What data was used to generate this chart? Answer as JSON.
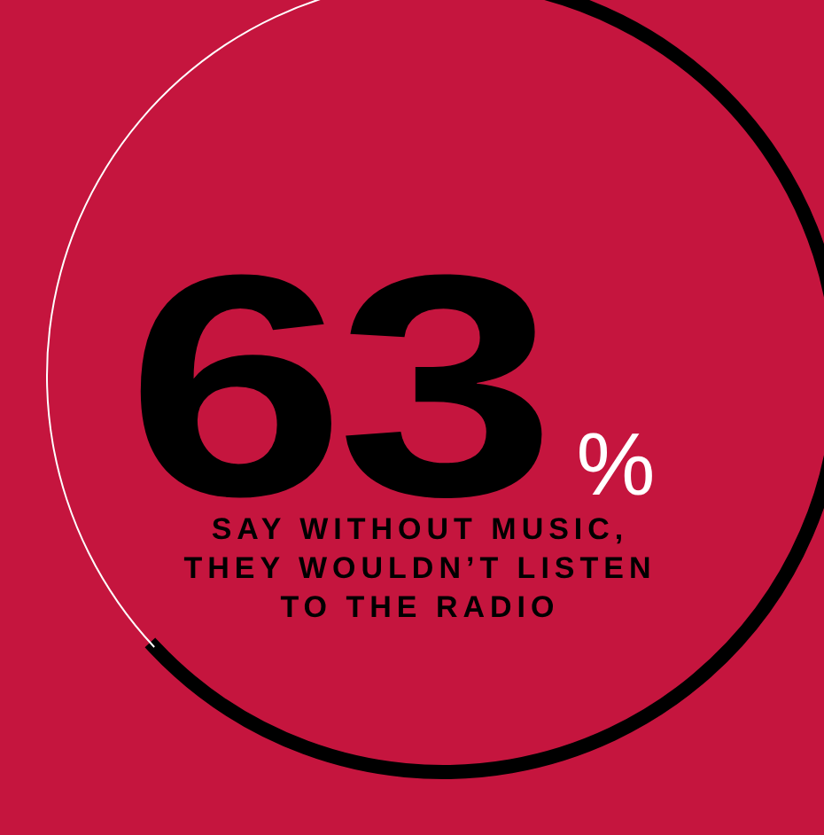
{
  "chart_data": {
    "type": "donut",
    "categories": [
      null,
      null
    ],
    "values": [
      63,
      37
    ],
    "colors": [
      "#000000",
      "#ffffff"
    ],
    "annotations": [
      "63%",
      "SAY WITHOUT MUSIC, THEY WOULDN’T LISTEN TO THE RADIO"
    ]
  }
}
